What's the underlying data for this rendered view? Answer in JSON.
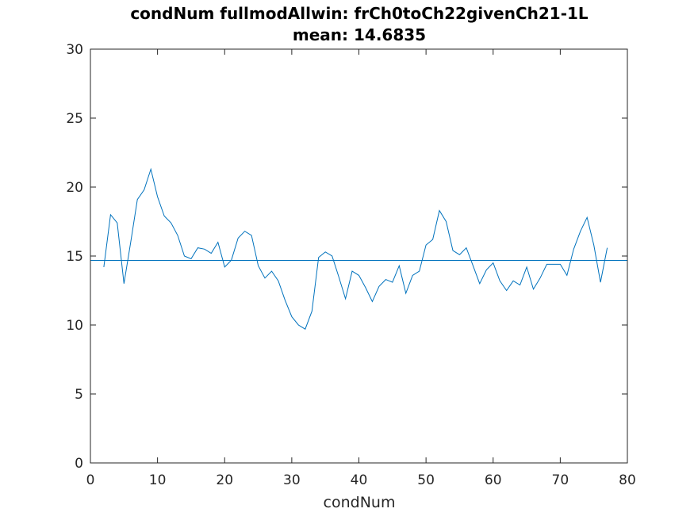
{
  "chart_data": {
    "type": "line",
    "title": "condNum fullmodAllwin: frCh0toCh22givenCh21-1L",
    "subtitle": "mean: 14.6835",
    "xlabel": "condNum",
    "ylabel": "",
    "xlim": [
      0,
      80
    ],
    "ylim": [
      0,
      30
    ],
    "xticks": [
      0,
      10,
      20,
      30,
      40,
      50,
      60,
      70,
      80
    ],
    "yticks": [
      0,
      5,
      10,
      15,
      20,
      25,
      30
    ],
    "grid": false,
    "series": [
      {
        "color": "#0072bd",
        "x": [
          2,
          3,
          4,
          5,
          6,
          7,
          8,
          9,
          10,
          11,
          12,
          13,
          14,
          15,
          16,
          17,
          18,
          19,
          20,
          21,
          22,
          23,
          24,
          25,
          26,
          27,
          28,
          29,
          30,
          31,
          32,
          33,
          34,
          35,
          36,
          37,
          38,
          39,
          40,
          41,
          42,
          43,
          44,
          45,
          46,
          47,
          48,
          49,
          50,
          51,
          52,
          53,
          54,
          55,
          56,
          57,
          58,
          59,
          60,
          61,
          62,
          63,
          64,
          65,
          66,
          67,
          68,
          69,
          70,
          71,
          72,
          73,
          74,
          75,
          76,
          77
        ],
        "y": [
          14.2,
          18.0,
          17.4,
          13.0,
          16.0,
          19.1,
          19.8,
          21.3,
          19.3,
          17.9,
          17.4,
          16.5,
          15.0,
          14.8,
          15.6,
          15.5,
          15.2,
          16.0,
          14.2,
          14.7,
          16.3,
          16.8,
          16.5,
          14.3,
          13.4,
          13.9,
          13.2,
          11.8,
          10.6,
          10.0,
          9.7,
          11.0,
          14.9,
          15.3,
          15.0,
          13.5,
          11.9,
          13.9,
          13.6,
          12.7,
          11.7,
          12.8,
          13.3,
          13.1,
          14.3,
          12.3,
          13.6,
          13.9,
          15.8,
          16.2,
          18.3,
          17.5,
          15.4,
          15.1,
          15.6,
          14.3,
          13.0,
          14.0,
          14.5,
          13.2,
          12.5,
          13.2,
          12.9,
          14.2,
          12.6,
          13.4,
          14.4,
          14.4,
          14.4,
          13.6,
          15.5,
          16.8,
          17.8,
          15.8,
          13.1,
          15.6
        ]
      }
    ],
    "reference_lines": [
      {
        "type": "horizontal",
        "y": 14.6835,
        "color": "#0072bd"
      },
      {
        "type": "horizontal",
        "y": 30,
        "color": "#d62728"
      }
    ]
  }
}
